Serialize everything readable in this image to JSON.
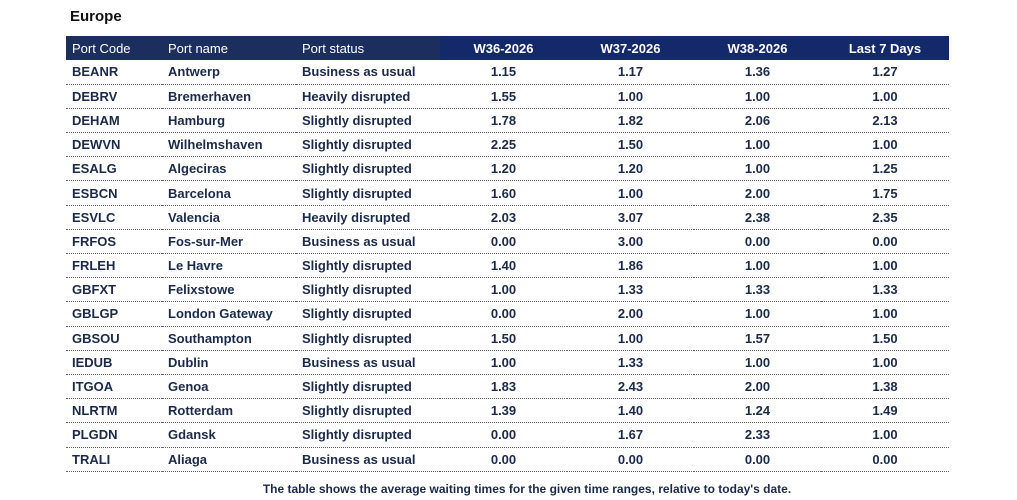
{
  "region_title": "Europe",
  "columns": [
    "Port Code",
    "Port name",
    "Port status",
    "W36-2026",
    "W37-2026",
    "W38-2026",
    "Last 7 Days"
  ],
  "rows": [
    [
      "BEANR",
      "Antwerp",
      "Business as usual",
      "1.15",
      "1.17",
      "1.36",
      "1.27"
    ],
    [
      "DEBRV",
      "Bremerhaven",
      "Heavily disrupted",
      "1.55",
      "1.00",
      "1.00",
      "1.00"
    ],
    [
      "DEHAM",
      "Hamburg",
      "Slightly disrupted",
      "1.78",
      "1.82",
      "2.06",
      "2.13"
    ],
    [
      "DEWVN",
      "Wilhelmshaven",
      "Slightly disrupted",
      "2.25",
      "1.50",
      "1.00",
      "1.00"
    ],
    [
      "ESALG",
      "Algeciras",
      "Slightly disrupted",
      "1.20",
      "1.20",
      "1.00",
      "1.25"
    ],
    [
      "ESBCN",
      "Barcelona",
      "Slightly disrupted",
      "1.60",
      "1.00",
      "2.00",
      "1.75"
    ],
    [
      "ESVLC",
      "Valencia",
      "Heavily disrupted",
      "2.03",
      "3.07",
      "2.38",
      "2.35"
    ],
    [
      "FRFOS",
      "Fos-sur-Mer",
      "Business as usual",
      "0.00",
      "3.00",
      "0.00",
      "0.00"
    ],
    [
      "FRLEH",
      "Le Havre",
      "Slightly disrupted",
      "1.40",
      "1.86",
      "1.00",
      "1.00"
    ],
    [
      "GBFXT",
      "Felixstowe",
      "Slightly disrupted",
      "1.00",
      "1.33",
      "1.33",
      "1.33"
    ],
    [
      "GBLGP",
      "London Gateway",
      "Slightly disrupted",
      "0.00",
      "2.00",
      "1.00",
      "1.00"
    ],
    [
      "GBSOU",
      "Southampton",
      "Slightly disrupted",
      "1.50",
      "1.00",
      "1.57",
      "1.50"
    ],
    [
      "IEDUB",
      "Dublin",
      "Business as usual",
      "1.00",
      "1.33",
      "1.00",
      "1.00"
    ],
    [
      "ITGOA",
      "Genoa",
      "Slightly disrupted",
      "1.83",
      "2.43",
      "2.00",
      "1.38"
    ],
    [
      "NLRTM",
      "Rotterdam",
      "Slightly disrupted",
      "1.39",
      "1.40",
      "1.24",
      "1.49"
    ],
    [
      "PLGDN",
      "Gdansk",
      "Slightly disrupted",
      "0.00",
      "1.67",
      "2.33",
      "1.00"
    ],
    [
      "TRALI",
      "Aliaga",
      "Business as usual",
      "0.00",
      "0.00",
      "0.00",
      "0.00"
    ]
  ],
  "footnote": "The table shows the average waiting times for the given time ranges, relative to today's date.",
  "colors": {
    "header_bg": "#1b2e5e",
    "header_num_bg": "#14296a",
    "text": "#1b2a4a"
  }
}
